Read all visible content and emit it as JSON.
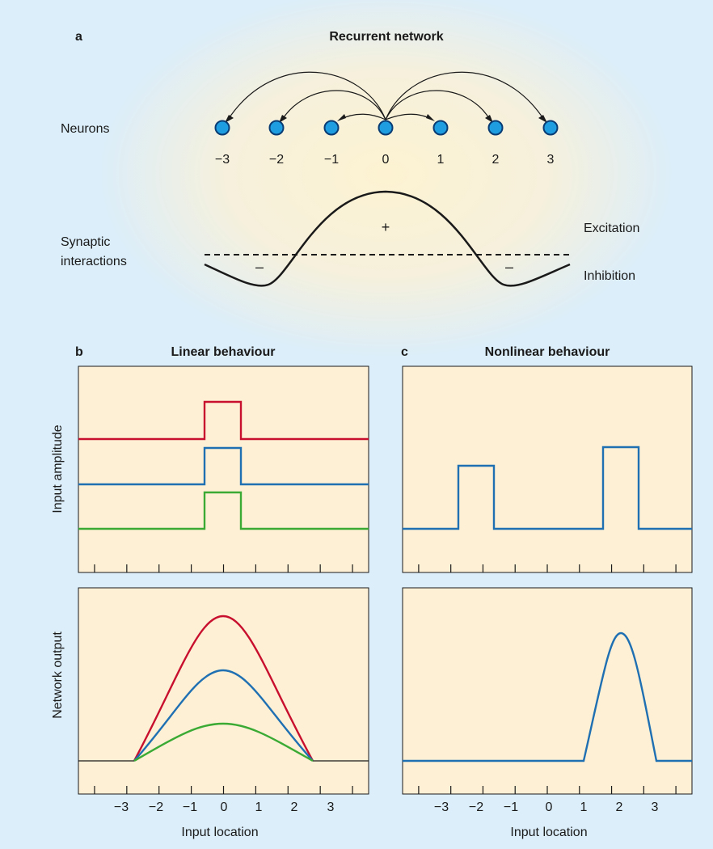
{
  "panel_a": {
    "letter": "a",
    "title": "Recurrent network",
    "neurons_label": "Neurons",
    "neuron_indices": [
      "−3",
      "−2",
      "−1",
      "0",
      "1",
      "2",
      "3"
    ],
    "synaptic_label_line1": "Synaptic",
    "synaptic_label_line2": "interactions",
    "plus_sign": "+",
    "minus_sign": "–",
    "excitation_label": "Excitation",
    "inhibition_label": "Inhibition"
  },
  "panel_b": {
    "letter": "b",
    "title": "Linear behaviour",
    "xlabel": "Input location",
    "top_ylabel": "Input amplitude",
    "bottom_ylabel": "Network output"
  },
  "panel_c": {
    "letter": "c",
    "title": "Nonlinear behaviour",
    "xlabel": "Input location"
  },
  "tick_labels": [
    "−3",
    "−2",
    "−1",
    "0",
    "1",
    "2",
    "3"
  ],
  "colors": {
    "background": "#dbeefa",
    "plot_fill": "#fdf0d4",
    "neuron": "#1e9ee0",
    "red": "#c8102e",
    "blue": "#1f6fb3",
    "green": "#3aaa35"
  },
  "chart_data": [
    {
      "type": "line",
      "panel": "b-top",
      "x_range": [
        -4.5,
        4.5
      ],
      "series": [
        {
          "color": "red",
          "x": [
            -4.5,
            -0.5,
            -0.5,
            0.5,
            0.5,
            4.5
          ],
          "y": [
            0,
            0,
            1,
            1,
            0,
            0
          ]
        },
        {
          "color": "blue",
          "x": [
            -4.5,
            -0.5,
            -0.5,
            0.5,
            0.5,
            4.5
          ],
          "y": [
            0,
            0,
            1,
            1,
            0,
            0
          ]
        },
        {
          "color": "green",
          "x": [
            -4.5,
            -0.5,
            -0.5,
            0.5,
            0.5,
            4.5
          ],
          "y": [
            0,
            0,
            1,
            1,
            0,
            0
          ]
        }
      ]
    },
    {
      "type": "line",
      "panel": "b-bottom",
      "x_range": [
        -4.5,
        4.5
      ],
      "series": [
        {
          "color": "red",
          "peak": 1.0,
          "support": [
            -2.5,
            2.5
          ]
        },
        {
          "color": "blue",
          "peak": 0.68,
          "support": [
            -2.5,
            2.5
          ]
        },
        {
          "color": "green",
          "peak": 0.33,
          "support": [
            -2.5,
            2.5
          ]
        }
      ]
    },
    {
      "type": "line",
      "panel": "c-top",
      "x_range": [
        -4.5,
        4.5
      ],
      "series": [
        {
          "color": "blue",
          "x": [
            -4.5,
            -2.5,
            -2.5,
            -1.5,
            -1.5,
            1.5,
            1.5,
            2.5,
            2.5,
            4.5
          ],
          "y": [
            0,
            0,
            1,
            1,
            0,
            0,
            1.35,
            1.35,
            0,
            0
          ]
        }
      ]
    },
    {
      "type": "line",
      "panel": "c-bottom",
      "x_range": [
        -4.5,
        4.5
      ],
      "series": [
        {
          "color": "blue",
          "peak": 1.0,
          "center": 2.0,
          "support": [
            1.0,
            3.0
          ]
        }
      ]
    }
  ]
}
